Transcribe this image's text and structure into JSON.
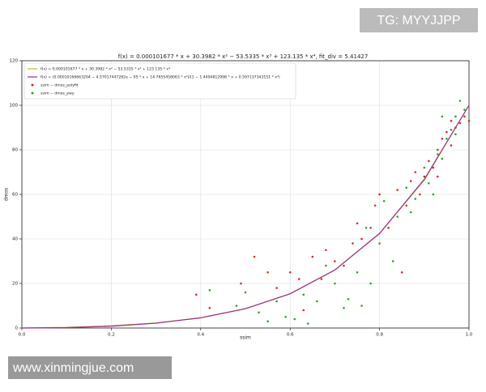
{
  "chart_data": {
    "type": "scatter",
    "title": "f(x) = 0.000101677 * x + 30.3982 * x² − 53.5335 * x³ + 123.135 * x⁴,    fit_div = 5.41427",
    "x_label": "ssim",
    "y_label": "dmos",
    "xlim": [
      0,
      1
    ],
    "ylim": [
      0,
      120
    ],
    "xticks": [
      {
        "value": 0,
        "label": "0.0"
      },
      0.2,
      0.4,
      0.6,
      0.8,
      {
        "value": 1,
        "label": "1.0"
      }
    ],
    "yticks": [
      0,
      20,
      40,
      60,
      80,
      100,
      120
    ],
    "grid": true,
    "legend": "upper-left",
    "series": [
      {
        "name": "f(x) = 0.000101677 * x + 30.3982 * x² − 53.5335 * x³ + 123.135 * x⁴",
        "color": "#bcbd22",
        "type": "line",
        "x": [
          0,
          0.1,
          0.2,
          0.3,
          0.4,
          0.5,
          0.6,
          0.7,
          0.8,
          0.9,
          1
        ],
        "values": [
          0,
          0.26,
          0.99,
          2.29,
          4.59,
          8.6,
          15.34,
          26.1,
          42.48,
          66.39,
          100
        ]
      },
      {
        "name": "f(x) = (0.00010166663204 − 4.57017447282e − 05 * x + 14.7655458063 * x²)/(1 − 1.4494812998 * x + 0.597137343151 * x²)",
        "color": "#9c2a8c",
        "type": "line",
        "x": [
          0,
          0.1,
          0.2,
          0.3,
          0.4,
          0.5,
          0.6,
          0.7,
          0.8,
          0.9,
          1
        ],
        "values": [
          0,
          0.17,
          0.81,
          2.15,
          4.58,
          8.7,
          15.4,
          26.03,
          42.45,
          66.76,
          100
        ]
      },
      {
        "name": "ssim − dmos_polyfit",
        "color": "#d62728",
        "type": "scatter",
        "x": [
          0.39,
          0.42,
          0.49,
          0.52,
          0.55,
          0.57,
          0.6,
          0.62,
          0.63,
          0.65,
          0.67,
          0.68,
          0.7,
          0.72,
          0.74,
          0.75,
          0.76,
          0.78,
          0.79,
          0.8,
          0.82,
          0.84,
          0.85,
          0.86,
          0.87,
          0.88,
          0.89,
          0.9,
          0.91,
          0.92,
          0.93,
          0.94,
          0.95,
          0.96,
          0.97,
          0.98,
          0.99,
          1,
          0.96,
          0.93
        ],
        "values": [
          15,
          9,
          20,
          32,
          25,
          18,
          25,
          22,
          8,
          32,
          22,
          35,
          30,
          28,
          38,
          47,
          40,
          45,
          55,
          60,
          45,
          62,
          25,
          55,
          66,
          70,
          60,
          68,
          75,
          72,
          80,
          85,
          88,
          82,
          90,
          92,
          95,
          93,
          93,
          68
        ]
      },
      {
        "name": "ssim − dmos_pwy",
        "color": "#2ca02c",
        "type": "scatter",
        "x": [
          0.42,
          0.48,
          0.5,
          0.53,
          0.55,
          0.57,
          0.59,
          0.61,
          0.63,
          0.64,
          0.66,
          0.68,
          0.7,
          0.72,
          0.73,
          0.75,
          0.76,
          0.77,
          0.78,
          0.8,
          0.81,
          0.83,
          0.84,
          0.86,
          0.87,
          0.88,
          0.9,
          0.91,
          0.92,
          0.93,
          0.94,
          0.95,
          0.96,
          0.97,
          0.98,
          0.99,
          0.97,
          0.94
        ],
        "values": [
          17,
          10,
          16,
          7,
          3,
          12,
          5,
          4,
          15,
          2,
          12,
          28,
          20,
          9,
          13,
          25,
          10,
          45,
          20,
          38,
          57,
          30,
          50,
          63,
          52,
          58,
          72,
          65,
          60,
          78,
          76,
          85,
          89,
          87,
          102,
          98,
          95,
          95
        ]
      }
    ]
  },
  "watermarks": {
    "top": "TG: MYYJJPP",
    "bottom": "www.xinmingjue.com"
  }
}
